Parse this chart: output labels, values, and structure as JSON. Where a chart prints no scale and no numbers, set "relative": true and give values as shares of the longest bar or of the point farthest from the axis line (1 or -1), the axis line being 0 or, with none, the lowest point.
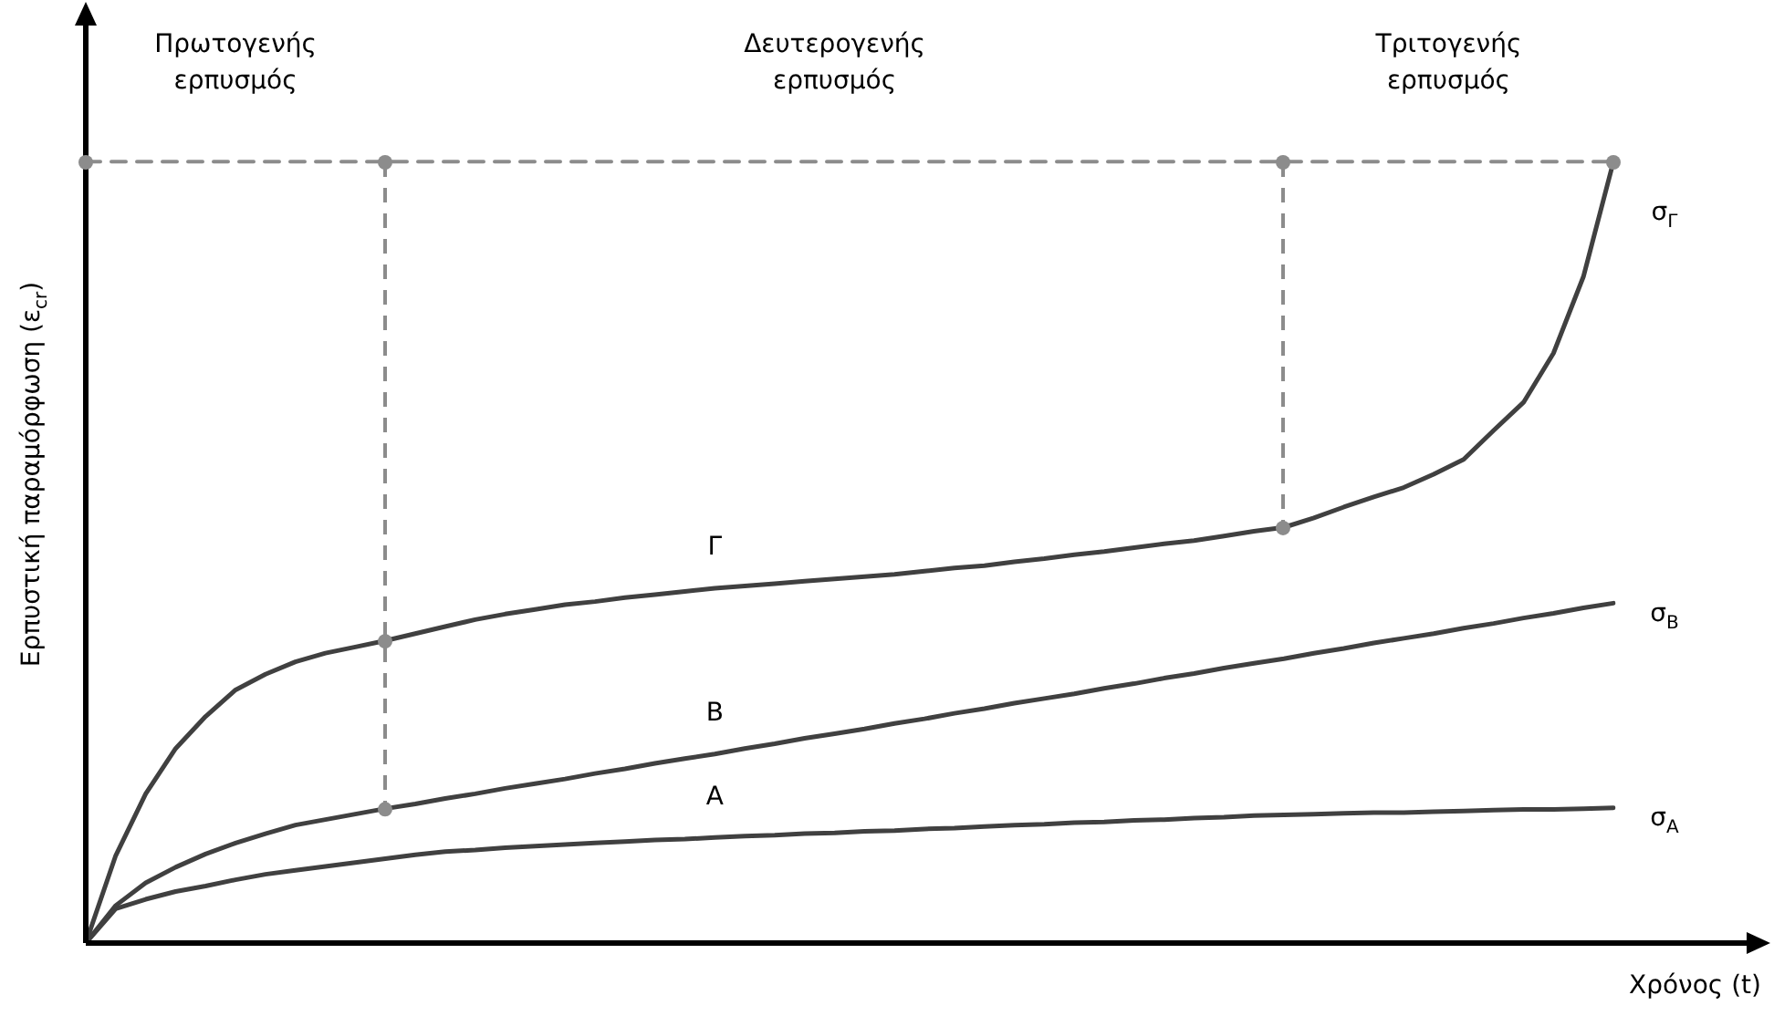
{
  "chart_data": {
    "type": "line",
    "relative": true,
    "xlabel": "Χρόνος (t)",
    "ylabel": "Ερπυστική παραμόρφωση (ε$_{cr}$)",
    "tick_labels": false,
    "grid": false,
    "legend": false,
    "marker": "none",
    "line_style": "solid",
    "categories": [
      null,
      null,
      null,
      null,
      null,
      null,
      null,
      null,
      null,
      null,
      null,
      null,
      null,
      null,
      null,
      null,
      null,
      null,
      null,
      null,
      null,
      null,
      null,
      null,
      null,
      null,
      null,
      null,
      null,
      null,
      null,
      null,
      null,
      null,
      null,
      null,
      null,
      null,
      null,
      null,
      null,
      null,
      null,
      null,
      null,
      null,
      null,
      null,
      null,
      null,
      null,
      null
    ],
    "series": [
      {
        "name": "Γ",
        "color": "#404040",
        "values": [
          0,
          0.112,
          0.191,
          0.249,
          0.29,
          0.324,
          0.344,
          0.36,
          0.371,
          0.379,
          0.387,
          0.396,
          0.405,
          0.414,
          0.421,
          0.427,
          0.433,
          0.437,
          0.442,
          0.446,
          0.45,
          0.454,
          0.457,
          0.46,
          0.463,
          0.466,
          0.469,
          0.472,
          0.476,
          0.48,
          0.483,
          0.488,
          0.492,
          0.497,
          0.501,
          0.506,
          0.511,
          0.515,
          0.521,
          0.527,
          0.532,
          0.544,
          0.558,
          0.571,
          0.583,
          0.6,
          0.619,
          0.656,
          0.692,
          0.755,
          0.853,
          1.0
        ]
      },
      {
        "name": "B",
        "color": "#404040",
        "values": [
          0,
          0.048,
          0.077,
          0.097,
          0.114,
          0.128,
          0.14,
          0.151,
          0.158,
          0.165,
          0.172,
          0.178,
          0.185,
          0.191,
          0.198,
          0.204,
          0.21,
          0.217,
          0.223,
          0.23,
          0.236,
          0.242,
          0.249,
          0.255,
          0.262,
          0.268,
          0.274,
          0.281,
          0.287,
          0.294,
          0.3,
          0.307,
          0.313,
          0.319,
          0.326,
          0.332,
          0.339,
          0.345,
          0.352,
          0.358,
          0.364,
          0.371,
          0.377,
          0.384,
          0.39,
          0.396,
          0.403,
          0.409,
          0.416,
          0.422,
          0.429,
          0.435
        ]
      },
      {
        "color": "#8c8c8c",
        "line_style": "dashed",
        "values": [
          1,
          1,
          1,
          1,
          1,
          1,
          1,
          1,
          1,
          1,
          1,
          1,
          1,
          1,
          1,
          1,
          1,
          1,
          1,
          1,
          1,
          1,
          1,
          1,
          1,
          1,
          1,
          1,
          1,
          1,
          1,
          1,
          1,
          1,
          1,
          1,
          1,
          1,
          1,
          1,
          1,
          1,
          1,
          1,
          1,
          1,
          1,
          1,
          1,
          1,
          1,
          1
        ]
      },
      {
        "name": "A",
        "color": "#404040",
        "values": [
          0,
          0.044,
          0.056,
          0.066,
          0.073,
          0.081,
          0.088,
          0.093,
          0.098,
          0.103,
          0.108,
          0.113,
          0.117,
          0.119,
          0.122,
          0.124,
          0.126,
          0.128,
          0.13,
          0.132,
          0.133,
          0.135,
          0.137,
          0.138,
          0.14,
          0.141,
          0.143,
          0.144,
          0.146,
          0.147,
          0.149,
          0.151,
          0.152,
          0.154,
          0.155,
          0.157,
          0.158,
          0.16,
          0.161,
          0.163,
          0.164,
          0.165,
          0.166,
          0.167,
          0.167,
          0.168,
          0.169,
          0.17,
          0.171,
          0.171,
          0.172,
          0.173
        ]
      }
    ],
    "annotations": [
      "Πρωτογενής ερπυσμός",
      "Δευτερογενής ερπυσμός",
      "Τριτογενής ερπυσμός",
      "σ$_{Γ}$",
      "σ$_{B}$",
      "σ$_{A}$"
    ]
  }
}
